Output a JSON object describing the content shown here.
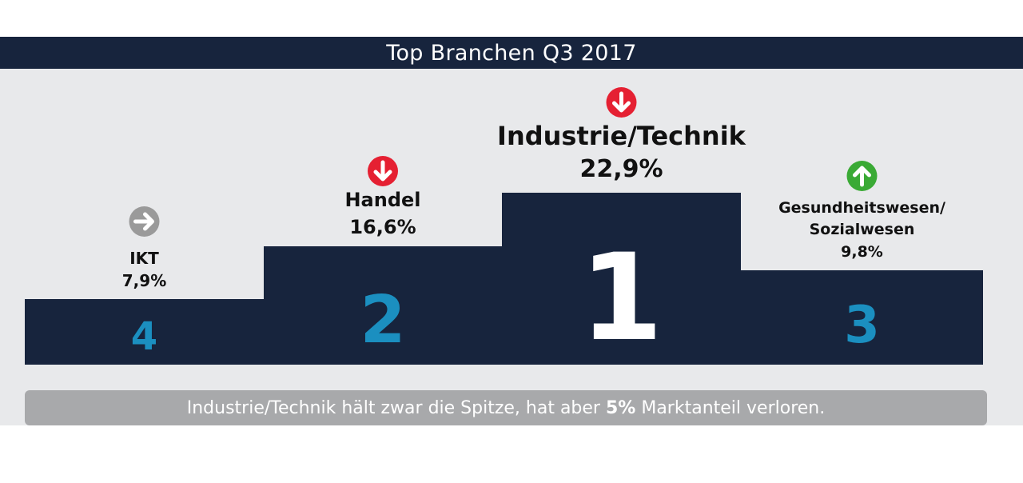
{
  "chart_data": {
    "type": "bar",
    "title": "Top Branchen Q3 2017",
    "categories": [
      "IKT",
      "Handel",
      "Industrie/Technik",
      "Gesundheitswesen/ Sozialwesen"
    ],
    "category_lines": [
      [
        "IKT"
      ],
      [
        "Handel"
      ],
      [
        "Industrie/Technik"
      ],
      [
        "Gesundheitswesen/",
        "Sozialwesen"
      ]
    ],
    "values": [
      7.9,
      16.6,
      22.9,
      9.8
    ],
    "value_labels": [
      "7,9%",
      "16,6%",
      "22,9%",
      "9,8%"
    ],
    "ranks": [
      "4",
      "2",
      "1",
      "3"
    ],
    "trends": [
      "right",
      "down",
      "down",
      "up"
    ],
    "colors": {
      "block": "#17243d",
      "rank_text": "#1b8fc0",
      "rank_text_first": "#ffffff",
      "trend_down": "#e52032",
      "trend_up": "#3aaa35",
      "trend_neutral": "#9a9a9a"
    }
  },
  "footer": {
    "text_before": "Industrie/Technik hält zwar die Spitze, hat aber ",
    "text_bold": "5%",
    "text_after": " Marktanteil verloren."
  }
}
